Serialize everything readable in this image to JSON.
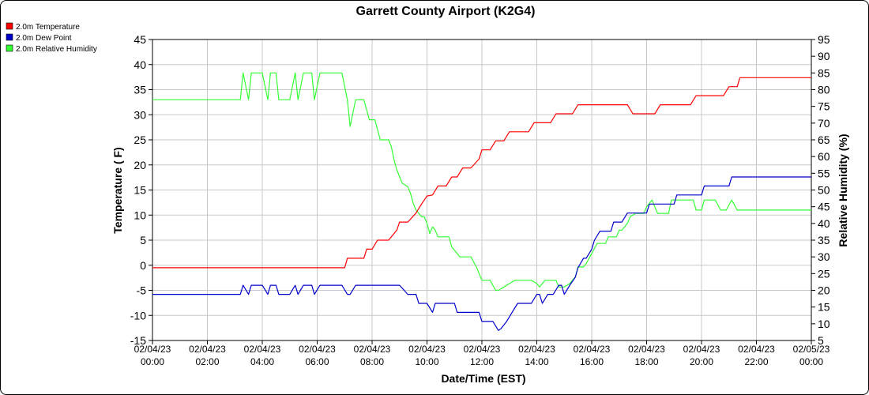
{
  "chart_data": {
    "type": "line",
    "title": "Garrett County Airport (K2G4)",
    "xlabel": "Date/Time (EST)",
    "ylabel_left": "Temperature ( F)",
    "ylabel_right": "Relative Humidity (%)",
    "xlim_hours": [
      0,
      24
    ],
    "x_ticks": [
      {
        "h": 0,
        "date": "02/04/23",
        "time": "00:00"
      },
      {
        "h": 2,
        "date": "02/04/23",
        "time": "02:00"
      },
      {
        "h": 4,
        "date": "02/04/23",
        "time": "04:00"
      },
      {
        "h": 6,
        "date": "02/04/23",
        "time": "06:00"
      },
      {
        "h": 8,
        "date": "02/04/23",
        "time": "08:00"
      },
      {
        "h": 10,
        "date": "02/04/23",
        "time": "10:00"
      },
      {
        "h": 12,
        "date": "02/04/23",
        "time": "12:00"
      },
      {
        "h": 14,
        "date": "02/04/23",
        "time": "14:00"
      },
      {
        "h": 16,
        "date": "02/04/23",
        "time": "16:00"
      },
      {
        "h": 18,
        "date": "02/04/23",
        "time": "18:00"
      },
      {
        "h": 20,
        "date": "02/04/23",
        "time": "20:00"
      },
      {
        "h": 22,
        "date": "02/04/23",
        "time": "22:00"
      },
      {
        "h": 24,
        "date": "02/05/23",
        "time": "00:00"
      }
    ],
    "ylim_left": [
      -15,
      45
    ],
    "yticks_left": [
      45,
      40,
      35,
      30,
      25,
      20,
      15,
      10,
      5,
      0,
      -5,
      -10,
      -15
    ],
    "ylim_right": [
      5,
      95
    ],
    "yticks_right": [
      95,
      90,
      85,
      80,
      75,
      70,
      65,
      60,
      55,
      50,
      45,
      40,
      35,
      30,
      25,
      20,
      15,
      10,
      5
    ],
    "grid": true,
    "legend_position": "top-left",
    "series": [
      {
        "name": "2.0m Temperature",
        "color": "#ff0000",
        "axis": "left",
        "points": [
          [
            0,
            -0.5
          ],
          [
            7.0,
            -0.5
          ],
          [
            7.1,
            1.4
          ],
          [
            7.7,
            1.4
          ],
          [
            7.8,
            3.2
          ],
          [
            8.0,
            3.2
          ],
          [
            8.2,
            5.0
          ],
          [
            8.6,
            5.0
          ],
          [
            8.9,
            7.0
          ],
          [
            9.0,
            8.6
          ],
          [
            9.3,
            8.6
          ],
          [
            9.6,
            10.4
          ],
          [
            9.8,
            12.2
          ],
          [
            10.0,
            13.8
          ],
          [
            10.2,
            14.0
          ],
          [
            10.4,
            15.8
          ],
          [
            10.7,
            15.8
          ],
          [
            10.9,
            17.6
          ],
          [
            11.1,
            17.6
          ],
          [
            11.3,
            19.4
          ],
          [
            11.6,
            19.4
          ],
          [
            11.9,
            21.2
          ],
          [
            12.0,
            23.0
          ],
          [
            12.3,
            23.0
          ],
          [
            12.5,
            24.8
          ],
          [
            12.8,
            24.8
          ],
          [
            13.0,
            26.6
          ],
          [
            13.7,
            26.6
          ],
          [
            13.9,
            28.4
          ],
          [
            14.5,
            28.4
          ],
          [
            14.7,
            30.2
          ],
          [
            15.3,
            30.2
          ],
          [
            15.5,
            32.0
          ],
          [
            17.3,
            32.0
          ],
          [
            17.5,
            30.2
          ],
          [
            18.3,
            30.2
          ],
          [
            18.5,
            32.0
          ],
          [
            19.6,
            32.0
          ],
          [
            19.8,
            33.8
          ],
          [
            20.8,
            33.8
          ],
          [
            21.0,
            35.6
          ],
          [
            21.3,
            35.6
          ],
          [
            21.4,
            37.4
          ],
          [
            24.0,
            37.4
          ]
        ]
      },
      {
        "name": "2.0m Dew Point",
        "color": "#0000cc",
        "axis": "left",
        "points": [
          [
            0,
            -5.8
          ],
          [
            3.2,
            -5.8
          ],
          [
            3.3,
            -4.0
          ],
          [
            3.5,
            -5.8
          ],
          [
            3.6,
            -4.0
          ],
          [
            4.0,
            -4.0
          ],
          [
            4.2,
            -5.8
          ],
          [
            4.3,
            -4.0
          ],
          [
            4.5,
            -4.0
          ],
          [
            4.6,
            -5.8
          ],
          [
            5.0,
            -5.8
          ],
          [
            5.2,
            -4.0
          ],
          [
            5.3,
            -5.8
          ],
          [
            5.5,
            -4.0
          ],
          [
            5.8,
            -4.0
          ],
          [
            5.9,
            -5.8
          ],
          [
            6.1,
            -4.0
          ],
          [
            6.9,
            -4.0
          ],
          [
            7.1,
            -5.8
          ],
          [
            7.2,
            -5.8
          ],
          [
            7.4,
            -4.0
          ],
          [
            9.0,
            -4.0
          ],
          [
            9.3,
            -5.8
          ],
          [
            9.6,
            -5.8
          ],
          [
            9.7,
            -7.6
          ],
          [
            10.0,
            -7.6
          ],
          [
            10.2,
            -9.4
          ],
          [
            10.3,
            -7.6
          ],
          [
            11.0,
            -7.6
          ],
          [
            11.1,
            -9.4
          ],
          [
            11.9,
            -9.4
          ],
          [
            12.0,
            -11.2
          ],
          [
            12.4,
            -11.2
          ],
          [
            12.6,
            -13.0
          ],
          [
            12.7,
            -12.6
          ],
          [
            12.9,
            -11.2
          ],
          [
            13.1,
            -9.4
          ],
          [
            13.3,
            -7.6
          ],
          [
            13.8,
            -7.6
          ],
          [
            14.0,
            -5.8
          ],
          [
            14.1,
            -5.8
          ],
          [
            14.2,
            -7.6
          ],
          [
            14.4,
            -5.8
          ],
          [
            14.6,
            -5.8
          ],
          [
            14.8,
            -4.0
          ],
          [
            14.9,
            -4.0
          ],
          [
            15.0,
            -5.8
          ],
          [
            15.2,
            -4.0
          ],
          [
            15.4,
            -2.4
          ],
          [
            15.5,
            -0.5
          ],
          [
            15.7,
            1.4
          ],
          [
            15.8,
            1.4
          ],
          [
            16.0,
            3.2
          ],
          [
            16.1,
            5.0
          ],
          [
            16.3,
            6.8
          ],
          [
            16.7,
            6.8
          ],
          [
            16.8,
            8.6
          ],
          [
            17.1,
            8.6
          ],
          [
            17.3,
            10.4
          ],
          [
            18.0,
            10.4
          ],
          [
            18.1,
            12.2
          ],
          [
            19.0,
            12.2
          ],
          [
            19.1,
            14.0
          ],
          [
            20.0,
            14.0
          ],
          [
            20.1,
            15.8
          ],
          [
            21.0,
            15.8
          ],
          [
            21.1,
            17.6
          ],
          [
            24.0,
            17.6
          ]
        ]
      },
      {
        "name": "2.0m Relative Humidity",
        "color": "#33ff33",
        "axis": "right",
        "points": [
          [
            0,
            77
          ],
          [
            3.2,
            77
          ],
          [
            3.3,
            85
          ],
          [
            3.5,
            77
          ],
          [
            3.6,
            85
          ],
          [
            4.0,
            85
          ],
          [
            4.2,
            77
          ],
          [
            4.3,
            85
          ],
          [
            4.5,
            85
          ],
          [
            4.6,
            77
          ],
          [
            5.0,
            77
          ],
          [
            5.2,
            85
          ],
          [
            5.3,
            77
          ],
          [
            5.5,
            85
          ],
          [
            5.8,
            85
          ],
          [
            5.9,
            77
          ],
          [
            6.1,
            85
          ],
          [
            6.9,
            85
          ],
          [
            7.1,
            77
          ],
          [
            7.2,
            69
          ],
          [
            7.4,
            77
          ],
          [
            7.7,
            77
          ],
          [
            7.9,
            71
          ],
          [
            8.1,
            71
          ],
          [
            8.3,
            65
          ],
          [
            8.6,
            65
          ],
          [
            8.7,
            63
          ],
          [
            8.8,
            59
          ],
          [
            8.9,
            56
          ],
          [
            9.1,
            52
          ],
          [
            9.3,
            51
          ],
          [
            9.4,
            49
          ],
          [
            9.5,
            46
          ],
          [
            9.6,
            44
          ],
          [
            9.8,
            42
          ],
          [
            9.9,
            42
          ],
          [
            10.0,
            40
          ],
          [
            10.1,
            37
          ],
          [
            10.2,
            39
          ],
          [
            10.3,
            38
          ],
          [
            10.4,
            36
          ],
          [
            10.8,
            36
          ],
          [
            10.9,
            33
          ],
          [
            11.1,
            31
          ],
          [
            11.2,
            30
          ],
          [
            11.6,
            30
          ],
          [
            11.8,
            27
          ],
          [
            12.0,
            23
          ],
          [
            12.3,
            23
          ],
          [
            12.5,
            20
          ],
          [
            12.6,
            20
          ],
          [
            12.8,
            21
          ],
          [
            13.0,
            22
          ],
          [
            13.2,
            23
          ],
          [
            13.8,
            23
          ],
          [
            14.0,
            22
          ],
          [
            14.1,
            21
          ],
          [
            14.3,
            23
          ],
          [
            14.7,
            23
          ],
          [
            14.8,
            21
          ],
          [
            15.0,
            21
          ],
          [
            15.2,
            22
          ],
          [
            15.4,
            24
          ],
          [
            15.5,
            27
          ],
          [
            15.7,
            27
          ],
          [
            15.8,
            28
          ],
          [
            16.0,
            31
          ],
          [
            16.2,
            34
          ],
          [
            16.5,
            34
          ],
          [
            16.6,
            36
          ],
          [
            16.9,
            36
          ],
          [
            17.0,
            38
          ],
          [
            17.1,
            38
          ],
          [
            17.3,
            40
          ],
          [
            17.4,
            42
          ],
          [
            17.6,
            43
          ],
          [
            17.9,
            43
          ],
          [
            18.0,
            45
          ],
          [
            18.2,
            47
          ],
          [
            18.3,
            45
          ],
          [
            18.4,
            43
          ],
          [
            18.8,
            43
          ],
          [
            18.9,
            47
          ],
          [
            19.7,
            47
          ],
          [
            19.8,
            44
          ],
          [
            20.0,
            44
          ],
          [
            20.1,
            47
          ],
          [
            20.5,
            47
          ],
          [
            20.7,
            44
          ],
          [
            20.9,
            44
          ],
          [
            21.1,
            47
          ],
          [
            21.3,
            44
          ],
          [
            24.0,
            44
          ]
        ]
      }
    ]
  }
}
